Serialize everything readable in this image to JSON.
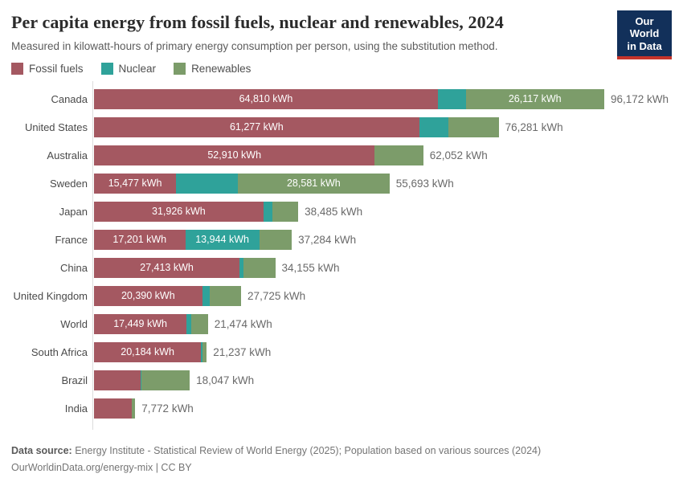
{
  "header": {
    "title": "Per capita energy from fossil fuels, nuclear and renewables, 2024",
    "subtitle": "Measured in kilowatt-hours of primary energy consumption per person, using the substitution method.",
    "logo": {
      "line1": "Our World",
      "line2": "in Data",
      "bg_color": "#12305a",
      "accent_color": "#c5342b"
    }
  },
  "legend": {
    "items": [
      {
        "label": "Fossil fuels",
        "color": "#a45861"
      },
      {
        "label": "Nuclear",
        "color": "#2fa29a"
      },
      {
        "label": "Renewables",
        "color": "#7c9c6a"
      }
    ]
  },
  "chart_data": {
    "type": "bar",
    "orientation": "horizontal",
    "stacked": true,
    "title": "Per capita energy from fossil fuels, nuclear and renewables, 2024",
    "subtitle": "Measured in kilowatt-hours of primary energy consumption per person, using the substitution method.",
    "unit": "kWh",
    "x_max": 96172,
    "grid": false,
    "legend_position": "top-left",
    "series": [
      "Fossil fuels",
      "Nuclear",
      "Renewables"
    ],
    "series_colors": [
      "#a45861",
      "#2fa29a",
      "#7c9c6a"
    ],
    "rows": [
      {
        "country": "Canada",
        "values": [
          64810,
          5245,
          26117
        ],
        "segment_labels": [
          "64,810 kWh",
          "",
          "26,117 kWh"
        ],
        "total": 96172,
        "total_label": "96,172 kWh"
      },
      {
        "country": "United States",
        "values": [
          61277,
          5537,
          9467
        ],
        "segment_labels": [
          "61,277 kWh",
          "",
          ""
        ],
        "total": 76281,
        "total_label": "76,281 kWh"
      },
      {
        "country": "Australia",
        "values": [
          52910,
          0,
          9142
        ],
        "segment_labels": [
          "52,910 kWh",
          "",
          ""
        ],
        "total": 62052,
        "total_label": "62,052 kWh"
      },
      {
        "country": "Sweden",
        "values": [
          15477,
          11635,
          28581
        ],
        "segment_labels": [
          "15,477 kWh",
          "",
          "28,581 kWh"
        ],
        "total": 55693,
        "total_label": "55,693 kWh"
      },
      {
        "country": "Japan",
        "values": [
          31926,
          1662,
          4897
        ],
        "segment_labels": [
          "31,926 kWh",
          "",
          ""
        ],
        "total": 38485,
        "total_label": "38,485 kWh"
      },
      {
        "country": "France",
        "values": [
          17201,
          13944,
          6139
        ],
        "segment_labels": [
          "17,201 kWh",
          "13,944 kWh",
          ""
        ],
        "total": 37284,
        "total_label": "37,284 kWh"
      },
      {
        "country": "China",
        "values": [
          27413,
          786,
          5956
        ],
        "segment_labels": [
          "27,413 kWh",
          "",
          ""
        ],
        "total": 34155,
        "total_label": "34,155 kWh"
      },
      {
        "country": "United Kingdom",
        "values": [
          20390,
          1416,
          5919
        ],
        "segment_labels": [
          "20,390 kWh",
          "",
          ""
        ],
        "total": 27725,
        "total_label": "27,725 kWh"
      },
      {
        "country": "World",
        "values": [
          17449,
          856,
          3169
        ],
        "segment_labels": [
          "17,449 kWh",
          "",
          ""
        ],
        "total": 21474,
        "total_label": "21,474 kWh"
      },
      {
        "country": "South Africa",
        "values": [
          20184,
          320,
          733
        ],
        "segment_labels": [
          "20,184 kWh",
          "",
          ""
        ],
        "total": 21237,
        "total_label": "21,237 kWh"
      },
      {
        "country": "Brazil",
        "values": [
          8782,
          169,
          9096
        ],
        "segment_labels": [
          "",
          "",
          ""
        ],
        "total": 18047,
        "total_label": "18,047 kWh"
      },
      {
        "country": "India",
        "values": [
          7090,
          96,
          586
        ],
        "segment_labels": [
          "",
          "",
          ""
        ],
        "total": 7772,
        "total_label": "7,772 kWh"
      }
    ]
  },
  "footer": {
    "source_prefix": "Data source:",
    "source_text": " Energy Institute - Statistical Review of World Energy (2025); Population based on various sources (2024)",
    "citation": "OurWorldinData.org/energy-mix | CC BY"
  }
}
